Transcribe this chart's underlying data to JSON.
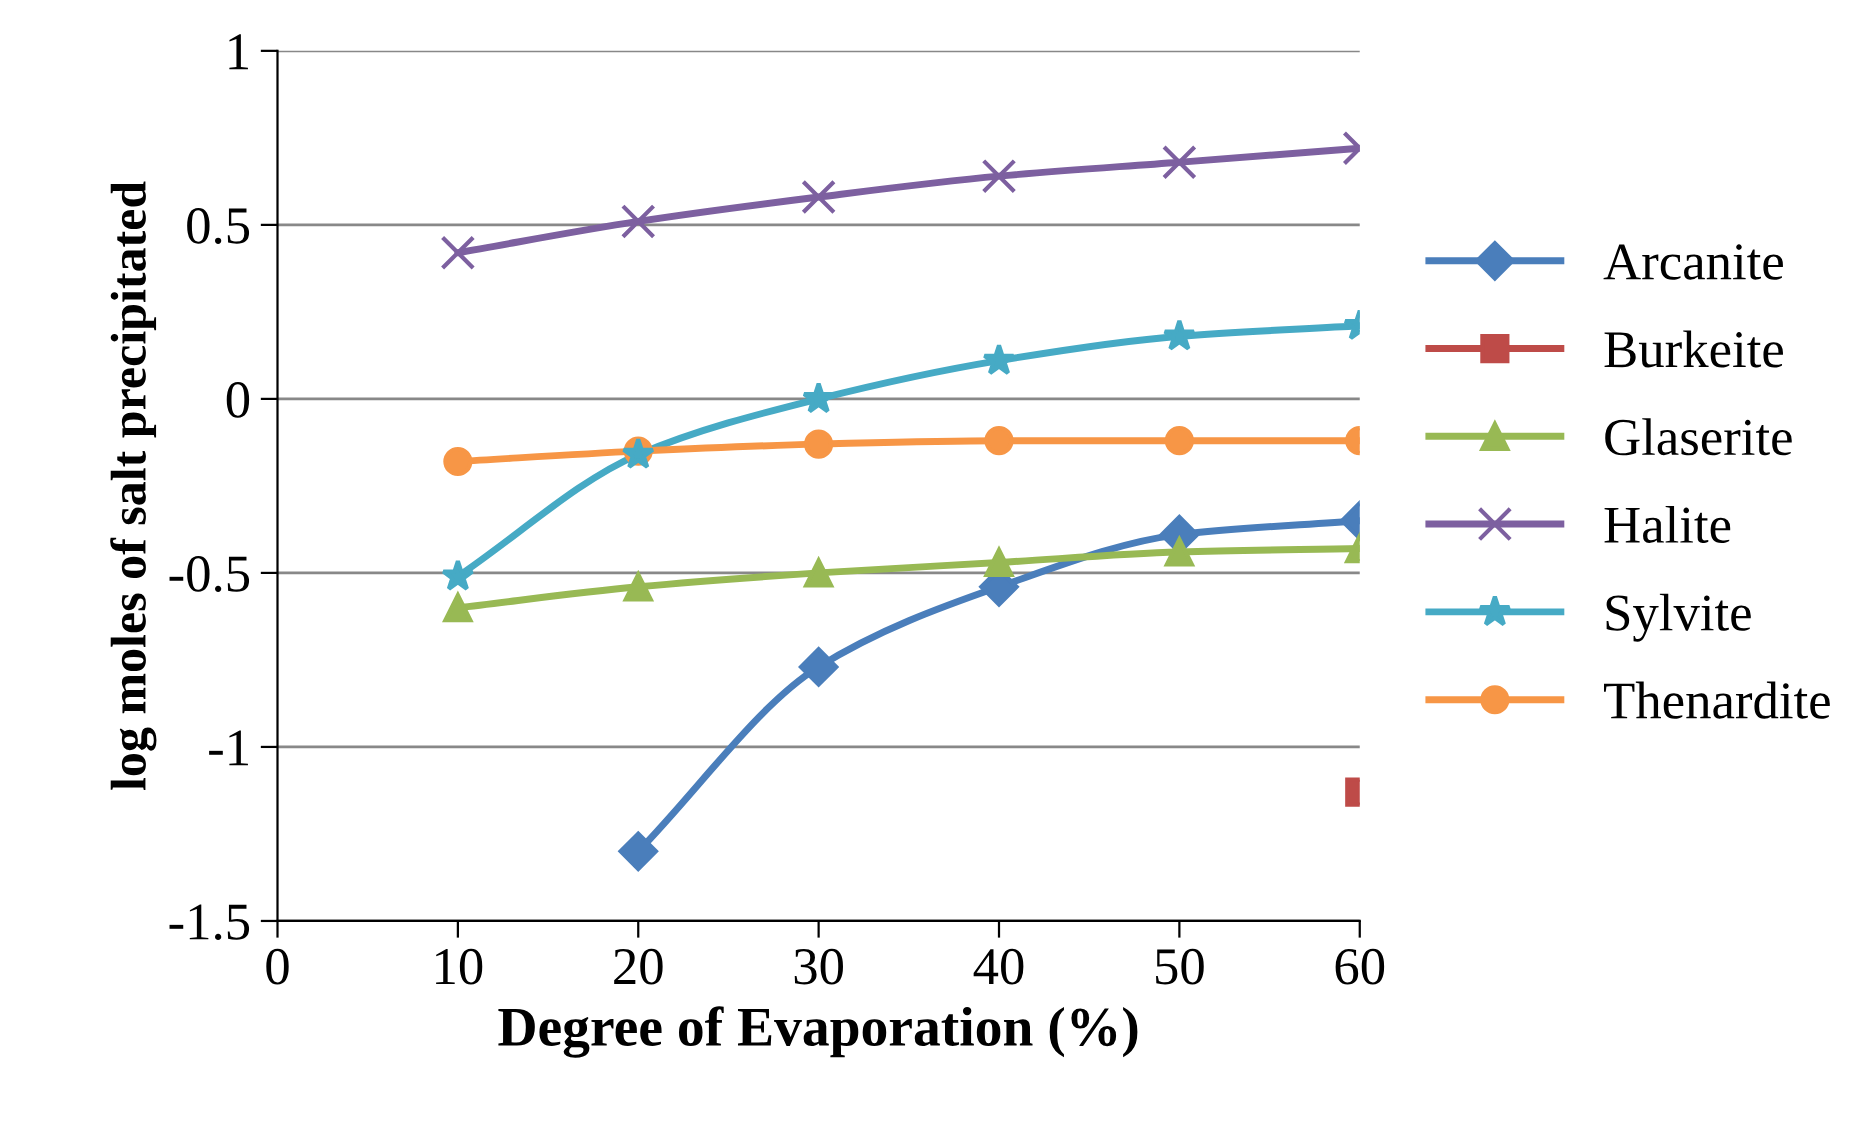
{
  "chart_data": {
    "type": "line",
    "xlabel": "Degree of Evaporation (%)",
    "ylabel": "log moles of salt precipitated",
    "x": [
      10,
      20,
      30,
      40,
      50,
      60
    ],
    "xlim": [
      0,
      60
    ],
    "xticks": [
      0,
      10,
      20,
      30,
      40,
      50,
      60
    ],
    "ylim": [
      -1.5,
      1
    ],
    "yticks": [
      -1.5,
      -1,
      -0.5,
      0,
      0.5,
      1
    ],
    "grid": "y",
    "legend": "right",
    "line_style": "solid",
    "series": [
      {
        "name": "Arcanite",
        "color": "#4a7ebb",
        "marker": "diamond",
        "values": [
          null,
          -1.3,
          -0.77,
          -0.54,
          -0.39,
          -0.35
        ]
      },
      {
        "name": "Burkeite",
        "color": "#be4b48",
        "marker": "square",
        "values": [
          null,
          null,
          null,
          null,
          null,
          -1.13
        ]
      },
      {
        "name": "Glaserite",
        "color": "#98b954",
        "marker": "triangle",
        "values": [
          -0.6,
          -0.54,
          -0.5,
          -0.47,
          -0.44,
          -0.43
        ]
      },
      {
        "name": "Halite",
        "color": "#7d60a0",
        "marker": "cross",
        "values": [
          0.42,
          0.51,
          0.58,
          0.64,
          0.68,
          0.72
        ]
      },
      {
        "name": "Sylvite",
        "color": "#46aac5",
        "marker": "star",
        "values": [
          -0.51,
          -0.16,
          0.0,
          0.11,
          0.18,
          0.21
        ]
      },
      {
        "name": "Thenardite",
        "color": "#f79646",
        "marker": "circle",
        "values": [
          -0.18,
          -0.15,
          -0.13,
          -0.12,
          -0.12,
          -0.12
        ]
      }
    ]
  }
}
